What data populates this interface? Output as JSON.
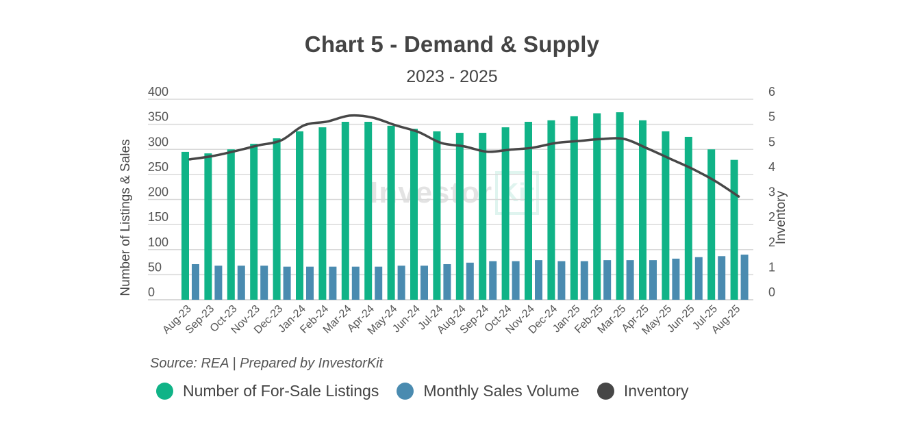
{
  "title": "Chart 5 - Demand & Supply",
  "subtitle": "2023 - 2025",
  "source": "Source: REA | Prepared by InvestorKit",
  "watermark": {
    "text": "Investor",
    "box_text": "Kit"
  },
  "colors": {
    "listings": "#10B387",
    "sales": "#4A8BB0",
    "inventory": "#474747",
    "grid": "#D9D9D9"
  },
  "legend": [
    {
      "label": "Number of For-Sale Listings",
      "color": "#10B387"
    },
    {
      "label": "Monthly Sales Volume",
      "color": "#4A8BB0"
    },
    {
      "label": "Inventory",
      "color": "#474747"
    }
  ],
  "chart_data": {
    "type": "bar",
    "title": "Chart 5 - Demand & Supply",
    "subtitle": "2023 - 2025",
    "xlabel": "",
    "ylabel": "Number of Listings & Sales",
    "y2label": "Inventory",
    "ylim": [
      0,
      400
    ],
    "y2lim": [
      0,
      6
    ],
    "yticks": [
      "0",
      "50",
      "100",
      "150",
      "200",
      "250",
      "300",
      "350",
      "400"
    ],
    "y2ticks": [
      "0",
      "1",
      "2",
      "2",
      "3",
      "4",
      "5",
      "5",
      "6"
    ],
    "grid": true,
    "legend_position": "bottom",
    "categories": [
      "Aug-23",
      "Sep-23",
      "Oct-23",
      "Nov-23",
      "Dec-23",
      "Jan-24",
      "Feb-24",
      "Mar-24",
      "Apr-24",
      "May-24",
      "Jun-24",
      "Jul-24",
      "Aug-24",
      "Sep-24",
      "Oct-24",
      "Nov-24",
      "Dec-24",
      "Jan-25",
      "Feb-25",
      "Mar-25",
      "Apr-25",
      "May-25",
      "Jun-25",
      "Jul-25",
      "Aug-25"
    ],
    "series": [
      {
        "name": "Number of For-Sale Listings",
        "type": "bar",
        "axis": "left",
        "values": [
          295,
          292,
          300,
          311,
          322,
          336,
          344,
          355,
          355,
          347,
          341,
          336,
          333,
          333,
          344,
          355,
          358,
          366,
          372,
          374,
          358,
          336,
          325,
          300,
          279
        ]
      },
      {
        "name": "Monthly Sales Volume",
        "type": "bar",
        "axis": "left",
        "values": [
          71,
          68,
          68,
          68,
          66,
          66,
          66,
          66,
          66,
          68,
          68,
          71,
          74,
          77,
          77,
          79,
          77,
          77,
          79,
          79,
          79,
          82,
          85,
          87,
          90
        ]
      },
      {
        "name": "Inventory",
        "type": "line",
        "axis": "right",
        "values": [
          4.2,
          4.3,
          4.45,
          4.62,
          4.77,
          5.22,
          5.33,
          5.51,
          5.45,
          5.22,
          5.02,
          4.69,
          4.59,
          4.43,
          4.49,
          4.55,
          4.69,
          4.75,
          4.81,
          4.81,
          4.53,
          4.22,
          3.91,
          3.54,
          3.09
        ]
      }
    ]
  }
}
